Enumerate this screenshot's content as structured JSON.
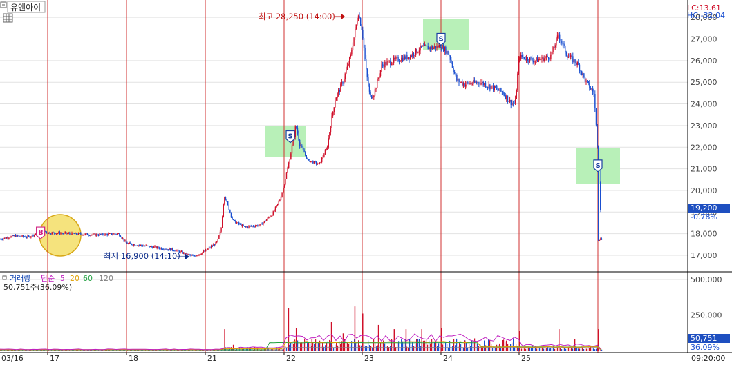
{
  "toolbar": {
    "stock_name": "유앤아이",
    "grid_icon": "grid-icon"
  },
  "corner_stats": {
    "lc_label": "LC:13.61",
    "hc_label": "HC:-32.04"
  },
  "price_axis": {
    "ticks": [
      "28,000",
      "27,000",
      "26,000",
      "25,000",
      "24,000",
      "23,000",
      "22,000",
      "21,000",
      "20,000",
      "19,000",
      "18,000",
      "17,000"
    ]
  },
  "current_price": {
    "price": "19,200",
    "change": "-0.78%"
  },
  "annotations": {
    "high": "최고 28,250 (14:00)",
    "low": "최저 16,900 (14:10)",
    "buy_marker": "B",
    "sell_marker": "S"
  },
  "volume_panel": {
    "label_title": "거래량",
    "label_simple": "단순",
    "ma5": "5",
    "ma20": "20",
    "ma60": "60",
    "ma120": "120",
    "current_line": "50,751주(36.09%)",
    "ticks": [
      "500,000",
      "250,000"
    ],
    "current_value": "50,751",
    "current_pct": "36.09%"
  },
  "time_axis": {
    "labels": [
      "03/16",
      "17",
      "18",
      "21",
      "22",
      "23",
      "24",
      "25"
    ],
    "end_time": "09:20:00"
  },
  "colors": {
    "up": "#d0102a",
    "down": "#1a4fd0",
    "day_line": "#d03030",
    "ma5": "#c020c0",
    "ma20": "#e0a000",
    "ma60": "#20a040",
    "ma120": "#808080",
    "highlight": "#b8f0b8",
    "buy_circle": "#f5e070",
    "price_box": "#1e4fc0"
  },
  "chart_data": {
    "type": "candlestick",
    "title": "유앤아이",
    "ylim": [
      16700,
      28400
    ],
    "y_ticks": [
      17000,
      18000,
      19000,
      20000,
      21000,
      22000,
      23000,
      24000,
      25000,
      26000,
      27000,
      28000
    ],
    "x_days": [
      "03/16",
      "17",
      "18",
      "21",
      "22",
      "23",
      "24",
      "25"
    ],
    "price_path": [
      [
        0,
        17750
      ],
      [
        0.3,
        17900
      ],
      [
        0.6,
        17850
      ],
      [
        0.75,
        18000
      ],
      [
        0.85,
        18200
      ],
      [
        1.0,
        18050
      ],
      [
        1.3,
        18000
      ],
      [
        1.6,
        17950
      ],
      [
        1.9,
        18000
      ],
      [
        2.0,
        17550
      ],
      [
        2.3,
        17400
      ],
      [
        2.6,
        17250
      ],
      [
        2.85,
        16950
      ],
      [
        3.0,
        17200
      ],
      [
        3.15,
        17600
      ],
      [
        3.2,
        18200
      ],
      [
        3.24,
        19800
      ],
      [
        3.35,
        18600
      ],
      [
        3.5,
        18300
      ],
      [
        3.7,
        18400
      ],
      [
        3.85,
        18900
      ],
      [
        3.95,
        19600
      ],
      [
        4.0,
        20300
      ],
      [
        4.08,
        21600
      ],
      [
        4.15,
        23000
      ],
      [
        4.2,
        22200
      ],
      [
        4.3,
        21400
      ],
      [
        4.45,
        21200
      ],
      [
        4.55,
        22000
      ],
      [
        4.65,
        24200
      ],
      [
        4.75,
        25000
      ],
      [
        4.85,
        26200
      ],
      [
        4.95,
        28200
      ],
      [
        5.0,
        27400
      ],
      [
        5.05,
        25500
      ],
      [
        5.1,
        24300
      ],
      [
        5.15,
        24500
      ],
      [
        5.25,
        25800
      ],
      [
        5.4,
        26000
      ],
      [
        5.6,
        26200
      ],
      [
        5.75,
        26600
      ],
      [
        5.9,
        26600
      ],
      [
        6.0,
        26700
      ],
      [
        6.1,
        26300
      ],
      [
        6.2,
        25100
      ],
      [
        6.3,
        24900
      ],
      [
        6.5,
        25000
      ],
      [
        6.7,
        24700
      ],
      [
        6.8,
        24500
      ],
      [
        6.88,
        24100
      ],
      [
        6.95,
        24000
      ],
      [
        7.0,
        26200
      ],
      [
        7.2,
        26000
      ],
      [
        7.4,
        26200
      ],
      [
        7.5,
        27200
      ],
      [
        7.6,
        26300
      ],
      [
        7.75,
        25800
      ],
      [
        7.85,
        25000
      ],
      [
        7.95,
        24500
      ],
      [
        8.0,
        21700
      ],
      [
        8.05,
        19300
      ],
      [
        8.08,
        19200
      ]
    ],
    "annotations": [
      {
        "text": "최고 28,250 (14:00)",
        "x": 4.95,
        "y": 28250
      },
      {
        "text": "최저 16,900 (14:10)",
        "x": 2.85,
        "y": 16900
      }
    ],
    "signals": [
      {
        "type": "B",
        "x": 0.85,
        "y": 18050
      },
      {
        "type": "S",
        "x": 4.08,
        "y": 22500
      },
      {
        "type": "S",
        "x": 6.0,
        "y": 27000
      },
      {
        "type": "S",
        "x": 8.0,
        "y": 21150
      }
    ],
    "volume": {
      "ylim": [
        0,
        550000
      ],
      "y_ticks": [
        250000,
        500000
      ],
      "spikes": [
        [
          3.24,
          150000
        ],
        [
          3.35,
          40000
        ],
        [
          4.05,
          300000
        ],
        [
          4.15,
          160000
        ],
        [
          4.35,
          80000
        ],
        [
          4.6,
          200000
        ],
        [
          4.75,
          120000
        ],
        [
          4.9,
          310000
        ],
        [
          5.0,
          260000
        ],
        [
          5.2,
          180000
        ],
        [
          5.4,
          150000
        ],
        [
          5.55,
          150000
        ],
        [
          5.75,
          150000
        ],
        [
          6.0,
          160000
        ],
        [
          6.3,
          70000
        ],
        [
          7.0,
          140000
        ],
        [
          7.5,
          150000
        ],
        [
          7.7,
          80000
        ],
        [
          8.0,
          150000
        ],
        [
          8.08,
          50751
        ]
      ],
      "current": 50751,
      "current_pct": 36.09
    }
  }
}
